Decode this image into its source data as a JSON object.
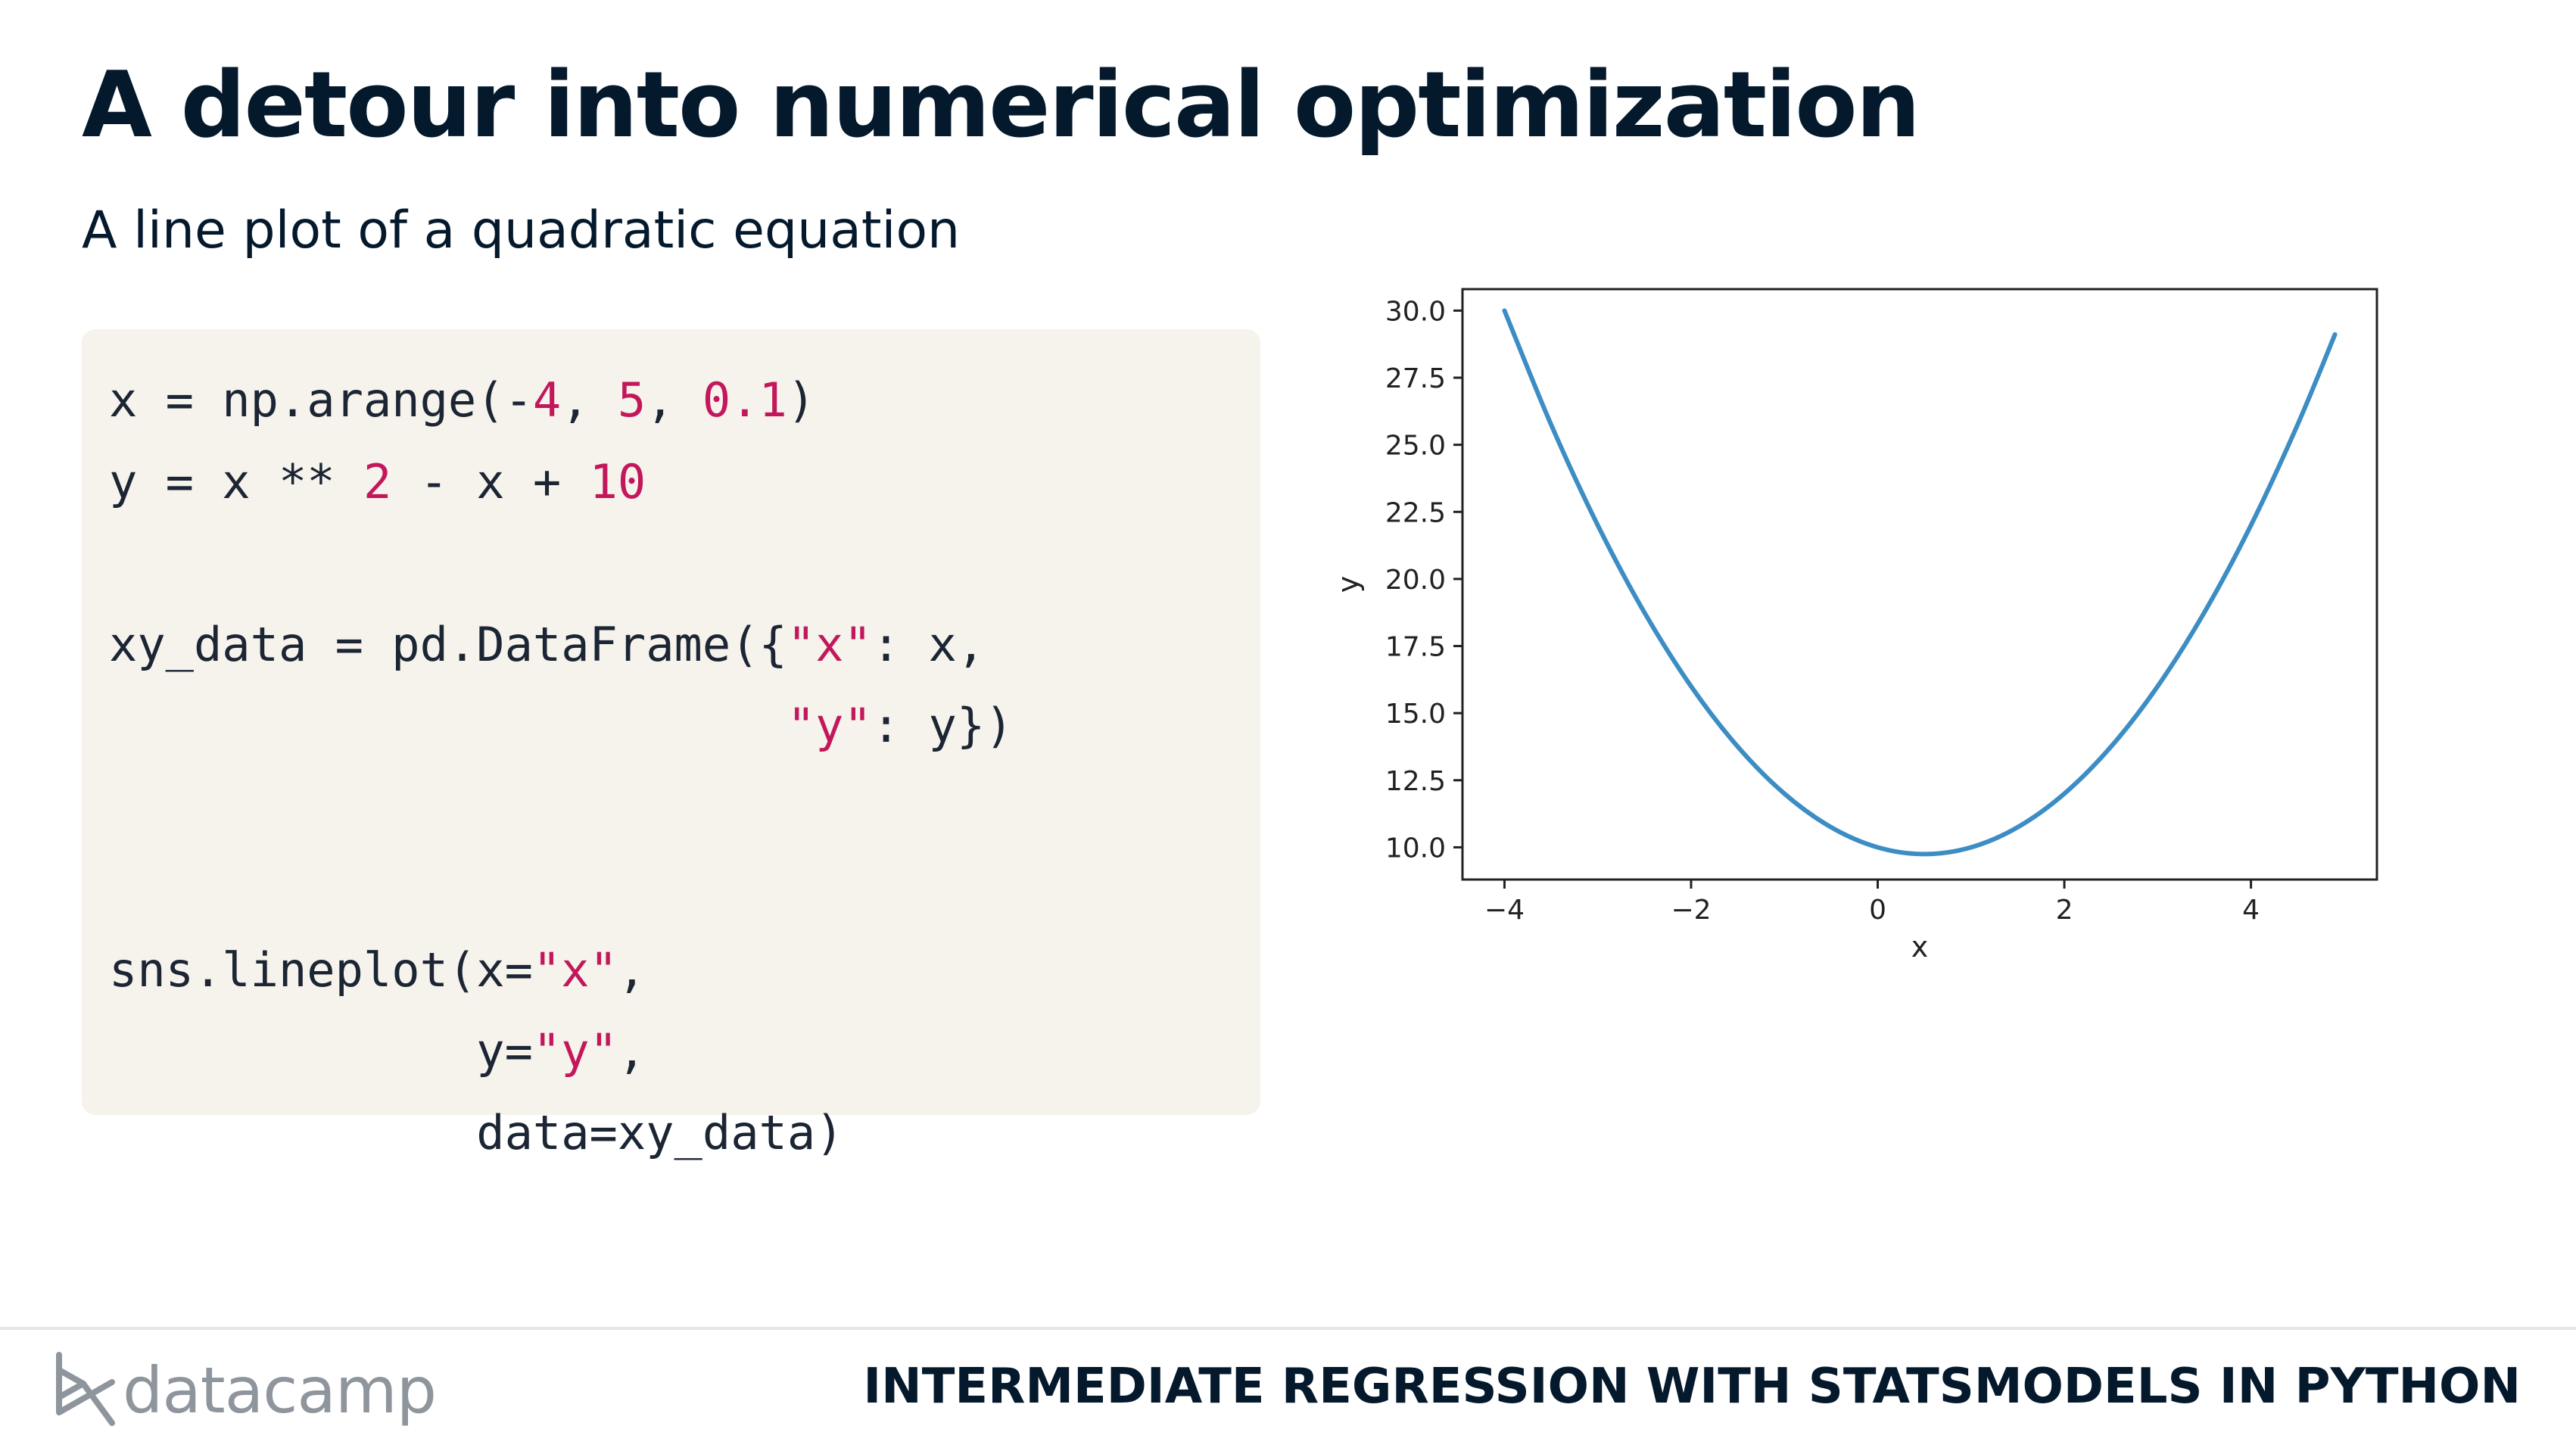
{
  "slide": {
    "title": "A detour into numerical optimization",
    "subtitle": "A line plot of a quadratic equation",
    "code_lines": [
      [
        {
          "t": "x = np.arange(-"
        },
        {
          "t": "4",
          "hl": true
        },
        {
          "t": ", "
        },
        {
          "t": "5",
          "hl": true
        },
        {
          "t": ", "
        },
        {
          "t": "0.1",
          "hl": true
        },
        {
          "t": ")"
        }
      ],
      [
        {
          "t": "y = x ** "
        },
        {
          "t": "2",
          "hl": true
        },
        {
          "t": " - x + "
        },
        {
          "t": "10",
          "hl": true
        }
      ],
      [],
      [
        {
          "t": "xy_data = pd.DataFrame({"
        },
        {
          "t": "\"x\"",
          "hl": true
        },
        {
          "t": ": x,"
        }
      ],
      [
        {
          "t": "                        "
        },
        {
          "t": "\"y\"",
          "hl": true
        },
        {
          "t": ": y})"
        }
      ],
      [],
      [],
      [
        {
          "t": "sns.lineplot(x="
        },
        {
          "t": "\"x\"",
          "hl": true
        },
        {
          "t": ","
        }
      ],
      [
        {
          "t": "             y="
        },
        {
          "t": "\"y\"",
          "hl": true
        },
        {
          "t": ","
        }
      ],
      [
        {
          "t": "             data=xy_data)"
        }
      ]
    ],
    "code_highlight_color": "#c2185b"
  },
  "chart_data": {
    "type": "line",
    "title": "",
    "xlabel": "x",
    "ylabel": "y",
    "xlim": [
      -4.45,
      5.35
    ],
    "ylim": [
      8.8,
      30.8
    ],
    "x_ticks": [
      -4,
      -2,
      0,
      2,
      4
    ],
    "x_tick_labels": [
      "−4",
      "−2",
      "0",
      "2",
      "4"
    ],
    "y_ticks": [
      10.0,
      12.5,
      15.0,
      17.5,
      20.0,
      22.5,
      25.0,
      27.5,
      30.0
    ],
    "y_tick_labels": [
      "10.0",
      "12.5",
      "15.0",
      "17.5",
      "20.0",
      "22.5",
      "25.0",
      "27.5",
      "30.0"
    ],
    "grid": false,
    "series": [
      {
        "x": [
          -4.0,
          -3.5,
          -3.0,
          -2.5,
          -2.0,
          -1.5,
          -1.0,
          -0.5,
          0.0,
          0.5,
          1.0,
          1.5,
          2.0,
          2.5,
          3.0,
          3.5,
          4.0,
          4.5,
          4.9
        ],
        "y": [
          30.0,
          25.75,
          22.0,
          18.75,
          16.0,
          13.75,
          12.0,
          10.75,
          10.0,
          9.75,
          10.0,
          10.75,
          12.0,
          13.75,
          16.0,
          18.75,
          22.0,
          25.75,
          29.11
        ],
        "color": "#3c8dc4"
      }
    ]
  },
  "footer": {
    "logo_text": "datacamp",
    "course_title": "INTERMEDIATE REGRESSION WITH STATSMODELS IN PYTHON"
  }
}
